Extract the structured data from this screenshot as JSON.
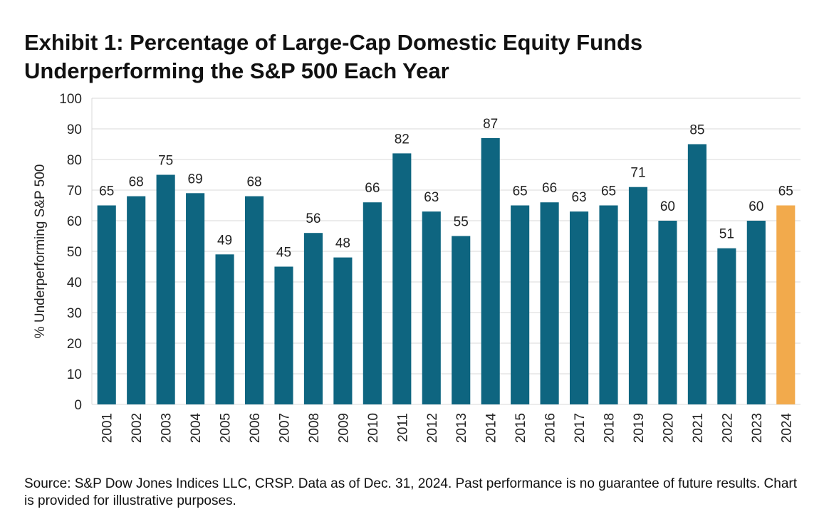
{
  "title": "Exhibit 1: Percentage of Large-Cap Domestic Equity Funds Underperforming the S&P 500 Each Year",
  "source": "Source: S&P Dow Jones Indices LLC, CRSP.  Data as of Dec. 31, 2024.  Past performance is no guarantee of future results.  Chart is provided for illustrative purposes.",
  "colors": {
    "bar": "#0e6580",
    "highlight": "#f2aa4c",
    "grid": "#d9d9d9"
  },
  "chart_data": {
    "type": "bar",
    "title": "Exhibit 1: Percentage of Large-Cap Domestic Equity Funds Underperforming the S&P 500 Each Year",
    "xlabel": "",
    "ylabel": "% Underperforming S&P 500",
    "ylim": [
      0,
      100
    ],
    "yticks": [
      0,
      10,
      20,
      30,
      40,
      50,
      60,
      70,
      80,
      90,
      100
    ],
    "grid": true,
    "categories": [
      "2001",
      "2002",
      "2003",
      "2004",
      "2005",
      "2006",
      "2007",
      "2008",
      "2009",
      "2010",
      "2011",
      "2012",
      "2013",
      "2014",
      "2015",
      "2016",
      "2017",
      "2018",
      "2019",
      "2020",
      "2021",
      "2022",
      "2023",
      "2024"
    ],
    "values": [
      65,
      68,
      75,
      69,
      49,
      68,
      45,
      56,
      48,
      66,
      82,
      63,
      55,
      87,
      65,
      66,
      63,
      65,
      71,
      60,
      85,
      51,
      60,
      65
    ],
    "highlight_category": "2024"
  }
}
